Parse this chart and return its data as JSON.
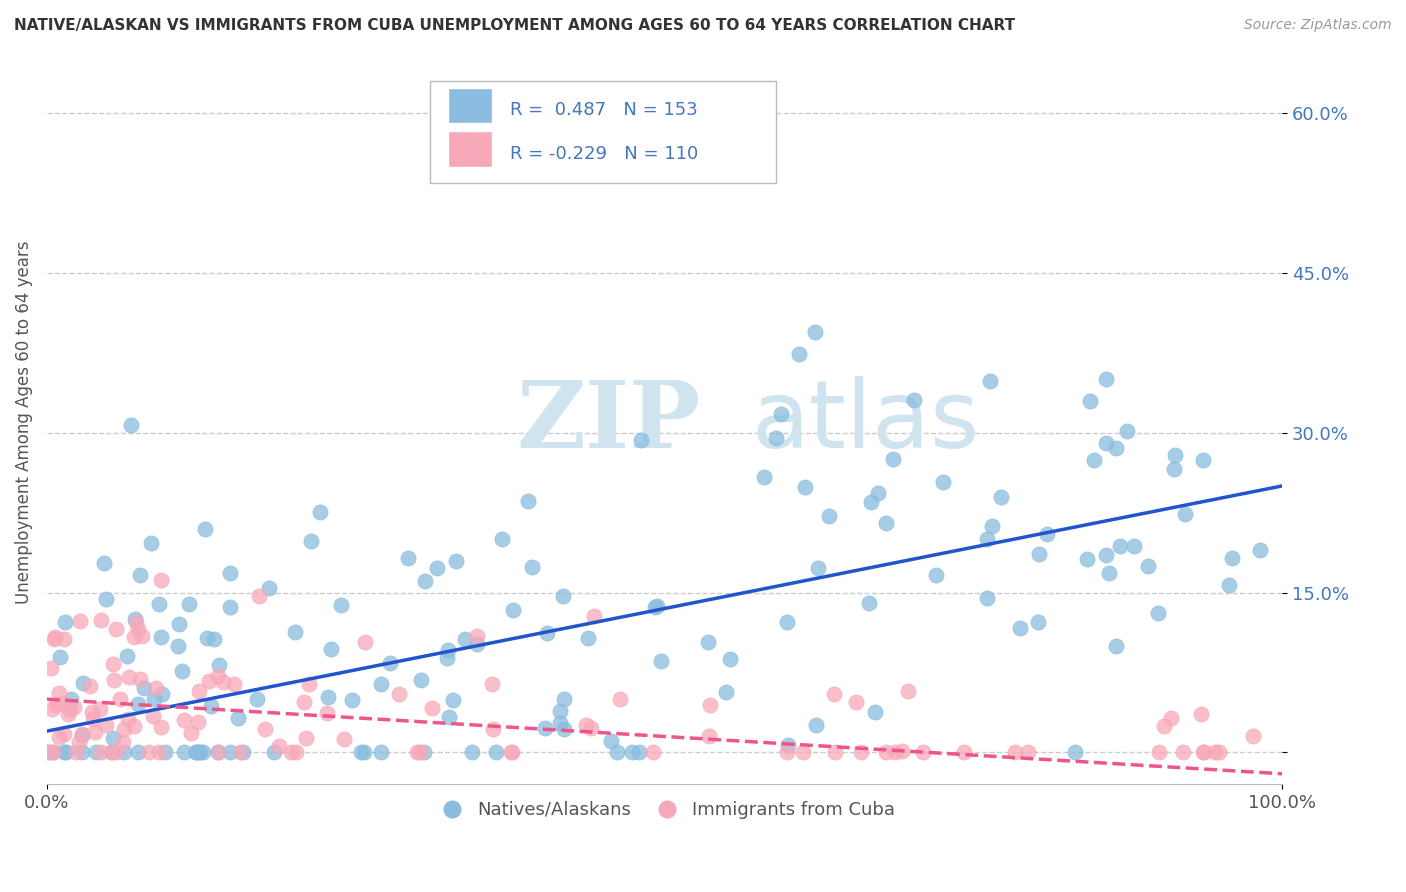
{
  "title": "NATIVE/ALASKAN VS IMMIGRANTS FROM CUBA UNEMPLOYMENT AMONG AGES 60 TO 64 YEARS CORRELATION CHART",
  "source": "Source: ZipAtlas.com",
  "ylabel": "Unemployment Among Ages 60 to 64 years",
  "xlim": [
    0,
    100
  ],
  "ylim": [
    -3,
    65
  ],
  "ytick_vals": [
    0,
    15,
    30,
    45,
    60
  ],
  "ytick_labels": [
    "",
    "15.0%",
    "30.0%",
    "45.0%",
    "60.0%"
  ],
  "xtick_vals": [
    0,
    100
  ],
  "xtick_labels": [
    "0.0%",
    "100.0%"
  ],
  "blue_R": 0.487,
  "blue_N": 153,
  "pink_R": -0.229,
  "pink_N": 110,
  "blue_color": "#89BCDE",
  "pink_color": "#F7A8B8",
  "blue_line_color": "#2255CC",
  "pink_line_color": "#EE5588",
  "watermark_zip": "ZIP",
  "watermark_atlas": "atlas",
  "watermark_color": "#D0E4F0",
  "legend_label_blue": "Natives/Alaskans",
  "legend_label_pink": "Immigrants from Cuba",
  "background_color": "#FFFFFF",
  "grid_color": "#CCCCCC",
  "blue_trend_y_start": 2,
  "blue_trend_y_end": 25,
  "pink_trend_y_start": 5,
  "pink_trend_y_end": -2,
  "title_fontsize": 11,
  "source_fontsize": 10
}
